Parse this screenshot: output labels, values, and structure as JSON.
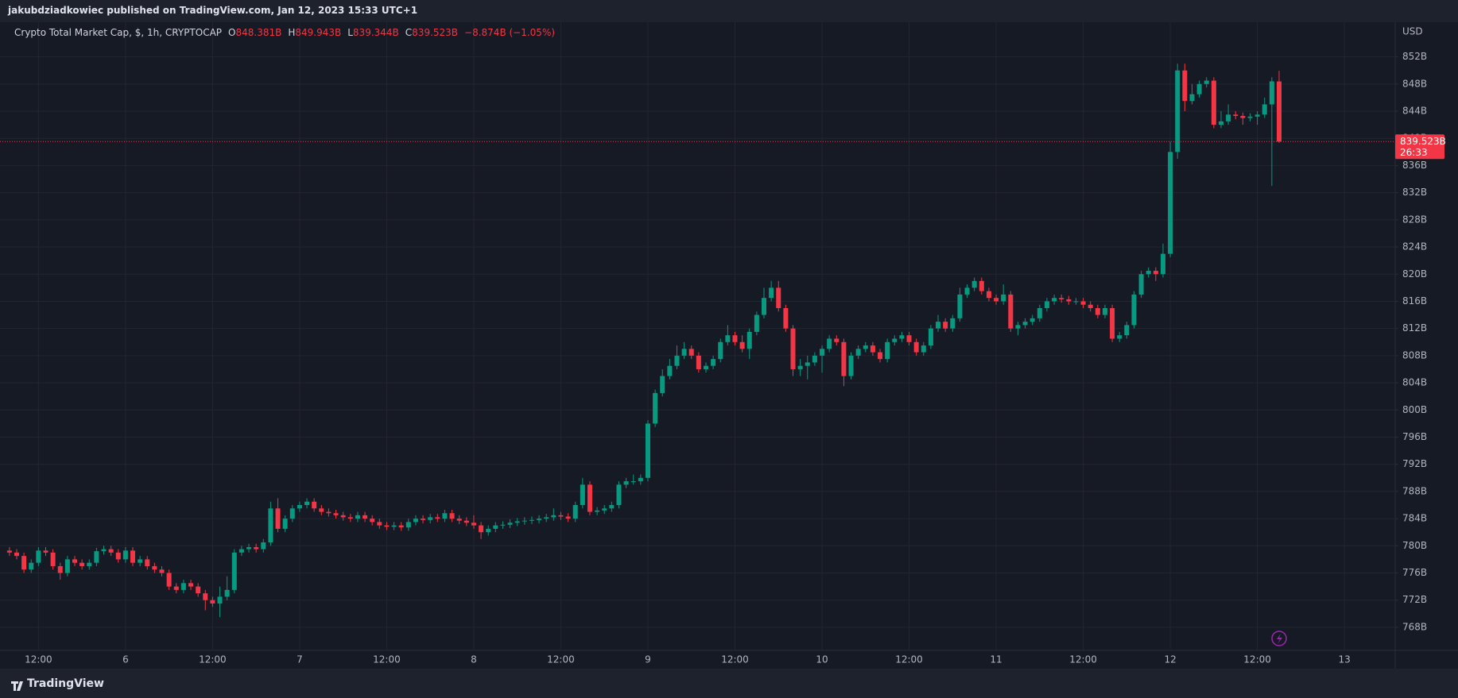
{
  "header": {
    "publisher": "jakubdziadkowiec published on TradingView.com, Jan 12, 2023 15:33 UTC+1",
    "brand": "TradingView"
  },
  "chart_data": {
    "type": "candlestick",
    "title": "Crypto Total Market Cap, $, 1h, CRYPTOCAP",
    "legend": [
      {
        "key": "O",
        "label": "848.381B"
      },
      {
        "key": "H",
        "label": "849.943B"
      },
      {
        "key": "L",
        "label": "839.344B"
      },
      {
        "key": "C",
        "label": "839.523B"
      }
    ],
    "change": "−8.874B (−1.05%)",
    "currency": "USD",
    "last_price_label": "839.523B",
    "countdown": "26:33",
    "up_color": "#089981",
    "down_color": "#f23645",
    "grid": true,
    "ylim": [
      764.6,
      857.1
    ],
    "yticks": [
      {
        "value": 768,
        "label": "768B"
      },
      {
        "value": 772,
        "label": "772B"
      },
      {
        "value": 776,
        "label": "776B"
      },
      {
        "value": 780,
        "label": "780B"
      },
      {
        "value": 784,
        "label": "784B"
      },
      {
        "value": 788,
        "label": "788B"
      },
      {
        "value": 792,
        "label": "792B"
      },
      {
        "value": 796,
        "label": "796B"
      },
      {
        "value": 800,
        "label": "800B"
      },
      {
        "value": 804,
        "label": "804B"
      },
      {
        "value": 808,
        "label": "808B"
      },
      {
        "value": 812,
        "label": "812B"
      },
      {
        "value": 816,
        "label": "816B"
      },
      {
        "value": 820,
        "label": "820B"
      },
      {
        "value": 824,
        "label": "824B"
      },
      {
        "value": 828,
        "label": "828B"
      },
      {
        "value": 832,
        "label": "832B"
      },
      {
        "value": 836,
        "label": "836B"
      },
      {
        "value": 840,
        "label": "840B"
      },
      {
        "value": 844,
        "label": "844B"
      },
      {
        "value": 848,
        "label": "848B"
      },
      {
        "value": 852,
        "label": "852B"
      }
    ],
    "xlim": [
      -1.3,
      191
    ],
    "xticks": [
      {
        "value": 4,
        "label": "12:00"
      },
      {
        "value": 16,
        "label": "6"
      },
      {
        "value": 28,
        "label": "12:00"
      },
      {
        "value": 40,
        "label": "7"
      },
      {
        "value": 52,
        "label": "12:00"
      },
      {
        "value": 64,
        "label": "8"
      },
      {
        "value": 76,
        "label": "12:00"
      },
      {
        "value": 88,
        "label": "9"
      },
      {
        "value": 100,
        "label": "12:00"
      },
      {
        "value": 112,
        "label": "10"
      },
      {
        "value": 124,
        "label": "12:00"
      },
      {
        "value": 136,
        "label": "11"
      },
      {
        "value": 148,
        "label": "12:00"
      },
      {
        "value": 160,
        "label": "12"
      },
      {
        "value": 172,
        "label": "12:00"
      },
      {
        "value": 184,
        "label": "13"
      }
    ],
    "candles": [
      [
        779.3,
        779.8,
        778.5,
        779.0
      ],
      [
        779.0,
        779.5,
        778.0,
        778.5
      ],
      [
        778.5,
        779.0,
        776.0,
        776.5
      ],
      [
        776.5,
        778.0,
        776.0,
        777.5
      ],
      [
        777.5,
        779.8,
        777.0,
        779.3
      ],
      [
        779.3,
        779.8,
        778.5,
        779.0
      ],
      [
        779.0,
        779.5,
        776.5,
        777.0
      ],
      [
        777.0,
        777.5,
        775.0,
        776.0
      ],
      [
        776.0,
        778.5,
        775.5,
        778.0
      ],
      [
        778.0,
        778.5,
        777.0,
        777.5
      ],
      [
        777.5,
        778.0,
        776.5,
        777.0
      ],
      [
        777.0,
        778.0,
        776.5,
        777.5
      ],
      [
        777.5,
        779.7,
        777.0,
        779.2
      ],
      [
        779.2,
        780.0,
        778.7,
        779.5
      ],
      [
        779.5,
        780.0,
        778.5,
        779.0
      ],
      [
        779.0,
        779.5,
        777.5,
        778.0
      ],
      [
        778.0,
        779.8,
        777.5,
        779.3
      ],
      [
        779.3,
        779.8,
        777.0,
        777.5
      ],
      [
        777.5,
        778.5,
        777.0,
        778.0
      ],
      [
        778.0,
        778.5,
        776.5,
        777.0
      ],
      [
        777.0,
        777.5,
        776.0,
        776.5
      ],
      [
        776.5,
        777.0,
        775.5,
        776.0
      ],
      [
        776.0,
        776.5,
        773.5,
        774.0
      ],
      [
        774.0,
        774.5,
        773.0,
        773.5
      ],
      [
        773.5,
        775.0,
        773.0,
        774.5
      ],
      [
        774.5,
        775.0,
        773.5,
        774.0
      ],
      [
        774.0,
        774.5,
        772.5,
        773.0
      ],
      [
        773.0,
        773.5,
        770.5,
        772.0
      ],
      [
        772.0,
        772.5,
        771.0,
        771.5
      ],
      [
        771.5,
        774.0,
        769.5,
        772.5
      ],
      [
        772.5,
        775.5,
        772.0,
        773.5
      ],
      [
        773.5,
        779.5,
        773.0,
        779.0
      ],
      [
        779.0,
        780.0,
        778.5,
        779.5
      ],
      [
        779.5,
        780.3,
        779.0,
        779.8
      ],
      [
        779.8,
        780.3,
        779.0,
        779.5
      ],
      [
        779.5,
        781.0,
        779.0,
        780.5
      ],
      [
        780.5,
        786.5,
        780.0,
        785.5
      ],
      [
        785.5,
        787.0,
        782.0,
        782.5
      ],
      [
        782.5,
        784.5,
        782.0,
        784.0
      ],
      [
        784.0,
        786.0,
        783.5,
        785.5
      ],
      [
        785.5,
        786.5,
        785.0,
        786.0
      ],
      [
        786.0,
        787.0,
        785.5,
        786.5
      ],
      [
        786.5,
        787.0,
        785.0,
        785.5
      ],
      [
        785.5,
        786.0,
        784.5,
        785.0
      ],
      [
        785.0,
        785.5,
        784.3,
        784.8
      ],
      [
        784.8,
        785.3,
        784.0,
        784.5
      ],
      [
        784.5,
        785.0,
        783.7,
        784.2
      ],
      [
        784.2,
        784.7,
        783.5,
        784.0
      ],
      [
        784.0,
        785.0,
        783.5,
        784.5
      ],
      [
        784.5,
        785.0,
        783.5,
        784.0
      ],
      [
        784.0,
        784.5,
        783.0,
        783.5
      ],
      [
        783.5,
        784.0,
        782.5,
        783.0
      ],
      [
        783.0,
        783.5,
        782.3,
        782.8
      ],
      [
        782.8,
        783.5,
        782.3,
        783.0
      ],
      [
        783.0,
        783.5,
        782.2,
        782.7
      ],
      [
        782.7,
        784.0,
        782.2,
        783.5
      ],
      [
        783.5,
        784.5,
        783.0,
        784.0
      ],
      [
        784.0,
        784.5,
        783.3,
        783.8
      ],
      [
        783.8,
        784.7,
        783.3,
        784.2
      ],
      [
        784.2,
        784.7,
        783.5,
        784.0
      ],
      [
        784.0,
        785.3,
        783.5,
        784.8
      ],
      [
        784.8,
        785.3,
        783.5,
        784.0
      ],
      [
        784.0,
        784.5,
        783.2,
        783.7
      ],
      [
        783.7,
        784.2,
        782.9,
        783.4
      ],
      [
        783.4,
        784.5,
        782.5,
        783.0
      ],
      [
        783.0,
        783.5,
        781.0,
        782.0
      ],
      [
        782.0,
        783.0,
        781.5,
        782.5
      ],
      [
        782.5,
        783.5,
        782.0,
        783.0
      ],
      [
        783.0,
        783.6,
        782.5,
        783.1
      ],
      [
        783.1,
        783.9,
        782.6,
        783.4
      ],
      [
        783.4,
        784.1,
        782.9,
        783.6
      ],
      [
        783.6,
        784.2,
        783.1,
        783.7
      ],
      [
        783.7,
        784.3,
        783.2,
        783.8
      ],
      [
        783.8,
        784.5,
        783.3,
        784.0
      ],
      [
        784.0,
        784.7,
        783.5,
        784.2
      ],
      [
        784.2,
        785.5,
        783.7,
        784.5
      ],
      [
        784.5,
        785.0,
        783.8,
        784.3
      ],
      [
        784.3,
        784.8,
        783.5,
        784.0
      ],
      [
        784.0,
        786.5,
        783.5,
        786.0
      ],
      [
        786.0,
        790.0,
        785.5,
        789.0
      ],
      [
        789.0,
        789.5,
        784.5,
        785.0
      ],
      [
        785.0,
        785.7,
        784.5,
        785.2
      ],
      [
        785.2,
        786.0,
        784.7,
        785.5
      ],
      [
        785.5,
        786.5,
        785.0,
        786.0
      ],
      [
        786.0,
        789.5,
        785.5,
        789.0
      ],
      [
        789.0,
        790.0,
        788.5,
        789.5
      ],
      [
        789.5,
        790.5,
        789.0,
        789.5
      ],
      [
        789.5,
        790.5,
        789.0,
        790.0
      ],
      [
        790.0,
        798.5,
        789.5,
        798.0
      ],
      [
        798.0,
        803.0,
        797.5,
        802.5
      ],
      [
        802.5,
        806.0,
        802.0,
        805.0
      ],
      [
        805.0,
        807.5,
        804.5,
        806.5
      ],
      [
        806.5,
        809.5,
        806.0,
        808.0
      ],
      [
        808.0,
        810.0,
        807.5,
        809.0
      ],
      [
        809.0,
        809.5,
        807.5,
        808.0
      ],
      [
        808.0,
        808.5,
        805.5,
        806.0
      ],
      [
        806.0,
        807.0,
        805.5,
        806.5
      ],
      [
        806.5,
        808.0,
        806.0,
        807.5
      ],
      [
        807.5,
        810.5,
        807.0,
        810.0
      ],
      [
        810.0,
        812.5,
        809.5,
        811.0
      ],
      [
        811.0,
        811.5,
        809.5,
        810.0
      ],
      [
        810.0,
        811.0,
        808.5,
        809.0
      ],
      [
        809.0,
        812.0,
        807.5,
        811.5
      ],
      [
        811.5,
        814.5,
        811.0,
        814.0
      ],
      [
        814.0,
        818.0,
        813.5,
        816.5
      ],
      [
        816.5,
        819.0,
        816.0,
        818.0
      ],
      [
        818.0,
        819.0,
        814.5,
        815.0
      ],
      [
        815.0,
        815.5,
        811.5,
        812.0
      ],
      [
        812.0,
        812.5,
        805.0,
        806.0
      ],
      [
        806.0,
        807.5,
        805.0,
        806.5
      ],
      [
        806.5,
        808.0,
        804.5,
        807.0
      ],
      [
        807.0,
        808.5,
        806.5,
        808.0
      ],
      [
        808.0,
        809.5,
        805.5,
        809.0
      ],
      [
        809.0,
        811.0,
        808.5,
        810.5
      ],
      [
        810.5,
        811.0,
        809.5,
        810.0
      ],
      [
        810.0,
        810.5,
        803.5,
        805.0
      ],
      [
        805.0,
        808.5,
        804.5,
        808.0
      ],
      [
        808.0,
        809.5,
        807.5,
        809.0
      ],
      [
        809.0,
        810.0,
        808.5,
        809.5
      ],
      [
        809.5,
        810.0,
        808.0,
        808.5
      ],
      [
        808.5,
        809.0,
        807.0,
        807.5
      ],
      [
        807.5,
        810.5,
        807.0,
        810.0
      ],
      [
        810.0,
        811.0,
        809.5,
        810.5
      ],
      [
        810.5,
        811.5,
        810.0,
        811.0
      ],
      [
        811.0,
        811.5,
        809.5,
        810.0
      ],
      [
        810.0,
        810.5,
        808.0,
        808.5
      ],
      [
        808.5,
        810.0,
        808.0,
        809.5
      ],
      [
        809.5,
        812.5,
        809.0,
        812.0
      ],
      [
        812.0,
        814.0,
        811.5,
        813.0
      ],
      [
        813.0,
        813.5,
        811.5,
        812.0
      ],
      [
        812.0,
        814.0,
        811.5,
        813.5
      ],
      [
        813.5,
        818.0,
        813.0,
        817.0
      ],
      [
        817.0,
        818.5,
        816.5,
        818.0
      ],
      [
        818.0,
        819.5,
        817.5,
        819.0
      ],
      [
        819.0,
        819.5,
        817.0,
        817.5
      ],
      [
        817.5,
        818.0,
        816.0,
        816.5
      ],
      [
        816.5,
        817.0,
        815.5,
        816.0
      ],
      [
        816.0,
        818.5,
        815.5,
        817.0
      ],
      [
        817.0,
        817.5,
        811.5,
        812.0
      ],
      [
        812.0,
        813.0,
        811.0,
        812.5
      ],
      [
        812.5,
        813.5,
        812.0,
        813.0
      ],
      [
        813.0,
        814.0,
        812.5,
        813.5
      ],
      [
        813.5,
        815.5,
        813.0,
        815.0
      ],
      [
        815.0,
        816.5,
        814.5,
        816.0
      ],
      [
        816.0,
        817.0,
        815.5,
        816.5
      ],
      [
        816.5,
        817.0,
        815.8,
        816.3
      ],
      [
        816.3,
        816.8,
        815.5,
        816.0
      ],
      [
        816.0,
        816.5,
        815.5,
        816.0
      ],
      [
        816.0,
        816.5,
        815.0,
        815.5
      ],
      [
        815.5,
        816.0,
        814.5,
        815.0
      ],
      [
        815.0,
        815.5,
        813.5,
        814.0
      ],
      [
        814.0,
        815.5,
        813.5,
        815.0
      ],
      [
        815.0,
        815.5,
        810.0,
        810.5
      ],
      [
        810.5,
        811.5,
        810.0,
        811.0
      ],
      [
        811.0,
        813.0,
        810.5,
        812.5
      ],
      [
        812.5,
        817.5,
        812.0,
        817.0
      ],
      [
        817.0,
        820.5,
        816.5,
        820.0
      ],
      [
        820.0,
        821.0,
        819.5,
        820.5
      ],
      [
        820.5,
        821.0,
        819.0,
        820.0
      ],
      [
        820.0,
        824.5,
        819.5,
        823.0
      ],
      [
        823.0,
        839.5,
        822.5,
        838.0
      ],
      [
        838.0,
        851.0,
        837.0,
        850.0
      ],
      [
        850.0,
        851.0,
        844.0,
        845.5
      ],
      [
        845.5,
        848.0,
        845.0,
        846.5
      ],
      [
        846.5,
        848.5,
        846.0,
        848.0
      ],
      [
        848.0,
        849.0,
        847.5,
        848.5
      ],
      [
        848.5,
        849.0,
        841.5,
        842.0
      ],
      [
        842.0,
        844.0,
        841.5,
        842.5
      ],
      [
        842.5,
        845.0,
        842.0,
        843.5
      ],
      [
        843.5,
        844.0,
        842.8,
        843.3
      ],
      [
        843.3,
        843.8,
        842.0,
        843.0
      ],
      [
        843.0,
        843.7,
        842.5,
        843.2
      ],
      [
        843.2,
        844.0,
        842.0,
        843.5
      ],
      [
        843.5,
        846.0,
        843.0,
        845.0
      ],
      [
        845.0,
        849.0,
        833.0,
        848.4
      ],
      [
        848.381,
        849.943,
        839.344,
        839.523
      ]
    ]
  }
}
